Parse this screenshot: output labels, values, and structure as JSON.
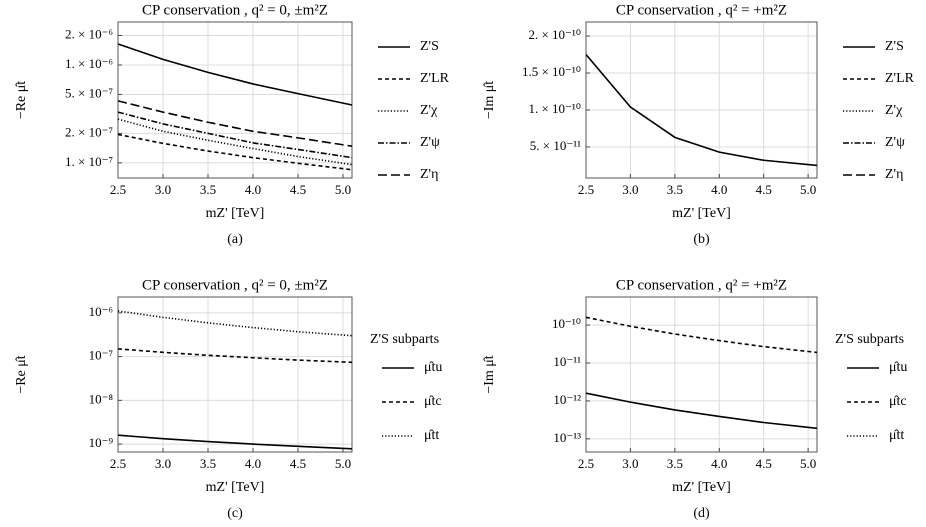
{
  "chart_data": [
    {
      "type": "line",
      "title": "CP conservation , q² = 0, ±m²Z",
      "xlabel": "mZ' [TeV]",
      "ylabel": "−Re μ̂t",
      "caption": "(a)",
      "x": [
        2.5,
        3.0,
        3.5,
        4.0,
        4.5,
        5.1
      ],
      "xlim": [
        2.5,
        5.1
      ],
      "xticks": [
        2.5,
        {
          "value": 3,
          "label": "3.0"
        },
        3.5,
        {
          "value": 4,
          "label": "4.0"
        },
        4.5,
        {
          "value": 5,
          "label": "5.0"
        }
      ],
      "ylim": [
        7e-08,
        2.75e-06
      ],
      "log_y": true,
      "grid": true,
      "legend": "right",
      "yticks": [
        {
          "value": 1e-07,
          "label": "1. × 10⁻⁷"
        },
        {
          "value": 2e-07,
          "label": "2. × 10⁻⁷"
        },
        {
          "value": 5e-07,
          "label": "5. × 10⁻⁷"
        },
        {
          "value": 1e-06,
          "label": "1. × 10⁻⁶"
        },
        {
          "value": 2e-06,
          "label": "2. × 10⁻⁶"
        }
      ],
      "series": [
        {
          "name": "Z'S",
          "color": "#000000",
          "dash": "solid",
          "values": [
            1.64e-06,
            1.14e-06,
            8.4e-07,
            6.4e-07,
            5.1e-07,
            3.9e-07
          ]
        },
        {
          "name": "Z'LR",
          "color": "#000000",
          "dash": "dash",
          "values": [
            1.95e-07,
            1.58e-07,
            1.32e-07,
            1.13e-07,
            9.9e-08,
            8.5e-08
          ]
        },
        {
          "name": "Z'χ",
          "color": "#000000",
          "dash": "dot",
          "values": [
            2.8e-07,
            2.1e-07,
            1.7e-07,
            1.4e-07,
            1.16e-07,
            9.6e-08
          ]
        },
        {
          "name": "Z'ψ",
          "color": "#000000",
          "dash": "dashdot",
          "values": [
            3.3e-07,
            2.5e-07,
            2e-07,
            1.6e-07,
            1.37e-07,
            1.13e-07
          ]
        },
        {
          "name": "Z'η",
          "color": "#000000",
          "dash": "longdash",
          "values": [
            4.3e-07,
            3.3e-07,
            2.6e-07,
            2.1e-07,
            1.8e-07,
            1.48e-07
          ]
        }
      ]
    },
    {
      "type": "line",
      "title": "CP conservation , q² = +m²Z",
      "xlabel": "mZ' [TeV]",
      "ylabel": "−Im μ̂t",
      "caption": "(b)",
      "x": [
        2.5,
        3.0,
        3.5,
        4.0,
        4.5,
        5.1
      ],
      "xlim": [
        2.5,
        5.1
      ],
      "xticks": [
        2.5,
        {
          "value": 3,
          "label": "3.0"
        },
        3.5,
        {
          "value": 4,
          "label": "4.0"
        },
        4.5,
        {
          "value": 5,
          "label": "5.0"
        }
      ],
      "ylim": [
        8e-12,
        2.19e-10
      ],
      "log_y": false,
      "grid": true,
      "legend": "right",
      "yticks": [
        {
          "value": 5e-11,
          "label": "5. × 10⁻¹¹"
        },
        {
          "value": 1e-10,
          "label": "1. × 10⁻¹⁰"
        },
        {
          "value": 1.5e-10,
          "label": "1.5 × 10⁻¹⁰"
        },
        {
          "value": 2e-10,
          "label": "2. × 10⁻¹⁰"
        }
      ],
      "series": [
        {
          "name": "Z'S",
          "color": "#000000",
          "dash": "solid",
          "values": [
            1.75e-10,
            1.04e-10,
            6.3e-11,
            4.3e-11,
            3.2e-11,
            2.5e-11
          ]
        },
        {
          "name": "Z'LR",
          "color": "#000000",
          "dash": "dash",
          "values": [
            null,
            null,
            null,
            null,
            null,
            null
          ]
        },
        {
          "name": "Z'χ",
          "color": "#000000",
          "dash": "dot",
          "values": [
            null,
            null,
            null,
            null,
            null,
            null
          ]
        },
        {
          "name": "Z'ψ",
          "color": "#000000",
          "dash": "dashdot",
          "values": [
            null,
            null,
            null,
            null,
            null,
            null
          ]
        },
        {
          "name": "Z'η",
          "color": "#000000",
          "dash": "longdash",
          "values": [
            null,
            null,
            null,
            null,
            null,
            null
          ]
        }
      ]
    },
    {
      "type": "line",
      "title": "CP conservation , q² = 0, ±m²Z",
      "xlabel": "mZ' [TeV]",
      "ylabel": "−Re μ̂t",
      "caption": "(c)",
      "x": [
        2.5,
        3.0,
        3.5,
        4.0,
        4.5,
        5.1
      ],
      "xlim": [
        2.5,
        5.1
      ],
      "xticks": [
        2.5,
        {
          "value": 3,
          "label": "3.0"
        },
        3.5,
        {
          "value": 4,
          "label": "4.0"
        },
        4.5,
        {
          "value": 5,
          "label": "5.0"
        }
      ],
      "ylim": [
        6.6e-10,
        2.3e-06
      ],
      "log_y": true,
      "grid": true,
      "legend": "right",
      "legend_title": "Z'S  subparts",
      "yticks": [
        {
          "value": 1e-09,
          "label": "10⁻⁹"
        },
        {
          "value": 1e-08,
          "label": "10⁻⁸"
        },
        {
          "value": 1e-07,
          "label": "10⁻⁷"
        },
        {
          "value": 1e-06,
          "label": "10⁻⁶"
        }
      ],
      "series": [
        {
          "name": "μ̂tu",
          "color": "#000000",
          "dash": "solid",
          "values": [
            1.6e-09,
            1.33e-09,
            1.14e-09,
            1e-09,
            8.9e-10,
            7.8e-10
          ]
        },
        {
          "name": "μ̂tc",
          "color": "#000000",
          "dash": "dash",
          "values": [
            1.5e-07,
            1.25e-07,
            1.07e-07,
            9.4e-08,
            8.3e-08,
            7.4e-08
          ]
        },
        {
          "name": "μ̂tt",
          "color": "#000000",
          "dash": "dot",
          "values": [
            1.1e-06,
            7.9e-07,
            5.9e-07,
            4.6e-07,
            3.7e-07,
            3e-07
          ]
        }
      ]
    },
    {
      "type": "line",
      "title": "CP conservation , q² = +m²Z",
      "xlabel": "mZ' [TeV]",
      "ylabel": "−Im μ̂t",
      "caption": "(d)",
      "x": [
        2.5,
        3.0,
        3.5,
        4.0,
        4.5,
        5.1
      ],
      "xlim": [
        2.5,
        5.1
      ],
      "xticks": [
        2.5,
        {
          "value": 3,
          "label": "3.0"
        },
        3.5,
        {
          "value": 4,
          "label": "4.0"
        },
        4.5,
        {
          "value": 5,
          "label": "5.0"
        }
      ],
      "ylim": [
        4.5e-14,
        5.5e-10
      ],
      "log_y": true,
      "grid": true,
      "legend": "right",
      "legend_title": "Z'S  subparts",
      "yticks": [
        {
          "value": 1e-13,
          "label": "10⁻¹³"
        },
        {
          "value": 1e-12,
          "label": "10⁻¹²"
        },
        {
          "value": 1e-11,
          "label": "10⁻¹¹"
        },
        {
          "value": 1e-10,
          "label": "10⁻¹⁰"
        }
      ],
      "series": [
        {
          "name": "μ̂tu",
          "color": "#000000",
          "dash": "solid",
          "values": [
            1.6e-12,
            9.3e-13,
            5.8e-13,
            3.9e-13,
            2.7e-13,
            1.9e-13
          ]
        },
        {
          "name": "μ̂tc",
          "color": "#000000",
          "dash": "dash",
          "values": [
            1.6e-10,
            9.3e-11,
            5.8e-11,
            3.9e-11,
            2.7e-11,
            1.9e-11
          ]
        },
        {
          "name": "μ̂tt",
          "color": "#000000",
          "dash": "dot",
          "values": [
            null,
            null,
            null,
            null,
            null,
            null
          ]
        }
      ]
    }
  ]
}
